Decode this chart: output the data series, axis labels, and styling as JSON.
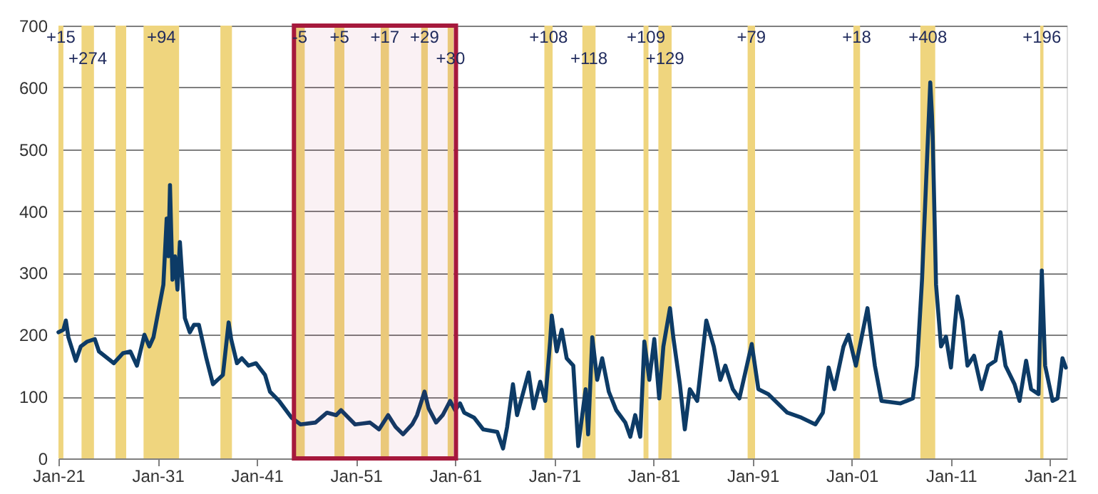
{
  "chart_data": {
    "type": "line",
    "x": [
      "1921-01",
      "1921-07",
      "1921-10",
      "1922-01",
      "1922-10",
      "1923-04",
      "1923-12",
      "1924-09",
      "1925-02",
      "1926-08",
      "1927-07",
      "1928-04",
      "1928-12",
      "1929-09",
      "1930-03",
      "1930-08",
      "1931-02",
      "1931-08",
      "1931-12",
      "1932-02",
      "1932-04",
      "1932-07",
      "1932-10",
      "1933-01",
      "1933-04",
      "1933-10",
      "1934-04",
      "1934-09",
      "1935-03",
      "1935-12",
      "1936-08",
      "1937-08",
      "1938-03",
      "1938-06",
      "1939-01",
      "1939-07",
      "1940-03",
      "1940-12",
      "1941-11",
      "1942-05",
      "1943-04",
      "1944-07",
      "1945-06",
      "1946-12",
      "1948-02",
      "1949-01",
      "1949-07",
      "1950-12",
      "1952-06",
      "1953-05",
      "1954-04",
      "1955-01",
      "1955-10",
      "1956-09",
      "1957-03",
      "1957-12",
      "1958-05",
      "1959-02",
      "1959-10",
      "1960-07",
      "1961-01",
      "1961-07",
      "1961-12",
      "1962-12",
      "1963-11",
      "1965-04",
      "1965-11",
      "1966-04",
      "1966-11",
      "1967-04",
      "1968-06",
      "1968-12",
      "1969-08",
      "1970-02",
      "1970-08",
      "1970-10",
      "1971-04",
      "1971-10",
      "1972-04",
      "1972-12",
      "1973-06",
      "1974-03",
      "1974-06",
      "1974-11",
      "1975-05",
      "1975-11",
      "1976-07",
      "1977-04",
      "1978-03",
      "1978-09",
      "1979-03",
      "1979-09",
      "1980-02",
      "1980-08",
      "1981-02",
      "1981-08",
      "1982-01",
      "1982-09",
      "1983-01",
      "1983-09",
      "1984-03",
      "1984-09",
      "1985-06",
      "1986-05",
      "1987-02",
      "1987-10",
      "1988-04",
      "1989-01",
      "1989-09",
      "1990-12",
      "1991-08",
      "1992-08",
      "1994-07",
      "1995-12",
      "1997-05",
      "1998-02",
      "1998-09",
      "1999-04",
      "2000-03",
      "2000-09",
      "2001-06",
      "2002-08",
      "2003-05",
      "2004-01",
      "2005-12",
      "2007-03",
      "2007-08",
      "2008-02",
      "2008-08",
      "2008-12",
      "2009-02",
      "2009-03",
      "2009-07",
      "2010-01",
      "2010-07",
      "2011-01",
      "2011-06",
      "2011-09",
      "2012-03",
      "2012-09",
      "2013-05",
      "2014-02",
      "2014-10",
      "2015-07",
      "2016-01",
      "2016-07",
      "2017-06",
      "2017-12",
      "2018-08",
      "2019-02",
      "2019-11",
      "2020-03",
      "2020-07",
      "2021-04",
      "2021-10",
      "2022-04",
      "2022-08"
    ],
    "series": [
      {
        "color": "#0d3b66",
        "values": [
          204,
          208,
          223,
          196,
          158,
          181,
          189,
          193,
          173,
          154,
          170,
          173,
          150,
          200,
          181,
          196,
          239,
          281,
          388,
          327,
          442,
          289,
          327,
          273,
          350,
          227,
          204,
          216,
          216,
          162,
          120,
          135,
          220,
          193,
          154,
          162,
          150,
          154,
          135,
          108,
          93,
          66,
          55,
          58,
          74,
          70,
          78,
          55,
          58,
          47,
          70,
          51,
          39,
          55,
          70,
          108,
          81,
          58,
          70,
          93,
          78,
          89,
          74,
          66,
          47,
          43,
          16,
          51,
          120,
          70,
          139,
          81,
          124,
          93,
          189,
          231,
          173,
          208,
          162,
          150,
          20,
          112,
          39,
          196,
          127,
          162,
          108,
          78,
          58,
          35,
          70,
          35,
          189,
          127,
          193,
          97,
          181,
          243,
          196,
          120,
          47,
          112,
          93,
          223,
          181,
          127,
          150,
          112,
          97,
          185,
          112,
          104,
          74,
          66,
          55,
          74,
          147,
          112,
          181,
          200,
          150,
          243,
          150,
          93,
          89,
          97,
          150,
          289,
          481,
          608,
          555,
          520,
          281,
          181,
          197,
          147,
          220,
          262,
          223,
          150,
          166,
          112,
          150,
          158,
          204,
          150,
          120,
          93,
          158,
          112,
          104,
          304,
          150,
          93,
          97,
          162,
          147
        ]
      }
    ],
    "xlim": [
      "1921-01",
      "2022-09"
    ],
    "xticks": [
      {
        "value": "1921-01",
        "label": "Jan-21"
      },
      {
        "value": "1931-01",
        "label": "Jan-31"
      },
      {
        "value": "1941-01",
        "label": "Jan-41"
      },
      {
        "value": "1951-01",
        "label": "Jan-51"
      },
      {
        "value": "1961-01",
        "label": "Jan-61"
      },
      {
        "value": "1971-01",
        "label": "Jan-71"
      },
      {
        "value": "1981-01",
        "label": "Jan-81"
      },
      {
        "value": "1991-01",
        "label": "Jan-91"
      },
      {
        "value": "2001-01",
        "label": "Jan-01"
      },
      {
        "value": "2011-01",
        "label": "Jan-11"
      },
      {
        "value": "2021-01",
        "label": "Jan-21"
      }
    ],
    "ylim": [
      0,
      700
    ],
    "yticks": [
      0,
      100,
      200,
      300,
      400,
      500,
      600,
      700
    ],
    "grid": "y",
    "line_style": "solid",
    "bands": [
      {
        "axis": "x",
        "from": "1921-01",
        "to": "1921-07",
        "color": "#efd57e",
        "label": "+15"
      },
      {
        "axis": "x",
        "from": "1923-05",
        "to": "1924-08",
        "color": "#efd57e",
        "label": "+274"
      },
      {
        "axis": "x",
        "from": "1926-10",
        "to": "1927-11",
        "color": "#efd57e"
      },
      {
        "axis": "x",
        "from": "1929-08",
        "to": "1933-03",
        "color": "#efd57e",
        "label": "+94"
      },
      {
        "axis": "x",
        "from": "1937-05",
        "to": "1938-07",
        "color": "#efd57e"
      },
      {
        "axis": "x",
        "from": "1944-11",
        "to": "1945-11",
        "color": "#efd57e",
        "label": "-5"
      },
      {
        "axis": "x",
        "from": "1948-11",
        "to": "1949-11",
        "color": "#efd57e",
        "label": "+5"
      },
      {
        "axis": "x",
        "from": "1953-07",
        "to": "1954-05",
        "color": "#efd57e",
        "label": "+17"
      },
      {
        "axis": "x",
        "from": "1957-08",
        "to": "1958-04",
        "color": "#efd57e",
        "label": "+29"
      },
      {
        "axis": "x",
        "from": "1960-04",
        "to": "1960-11",
        "color": "#efd57e",
        "label": "+30"
      },
      {
        "axis": "x",
        "from": "1970-01",
        "to": "1970-11",
        "color": "#efd57e",
        "label": "+108"
      },
      {
        "axis": "x",
        "from": "1973-11",
        "to": "1975-03",
        "color": "#efd57e",
        "label": "+118"
      },
      {
        "axis": "x",
        "from": "1980-01",
        "to": "1980-07",
        "color": "#efd57e",
        "label": "+109"
      },
      {
        "axis": "x",
        "from": "1981-07",
        "to": "1982-11",
        "color": "#efd57e",
        "label": "+129"
      },
      {
        "axis": "x",
        "from": "1990-07",
        "to": "1991-04",
        "color": "#efd57e",
        "label": "+79"
      },
      {
        "axis": "x",
        "from": "2001-03",
        "to": "2001-11",
        "color": "#efd57e",
        "label": "+18"
      },
      {
        "axis": "x",
        "from": "2007-12",
        "to": "2009-06",
        "color": "#efd57e",
        "label": "+408"
      },
      {
        "axis": "x",
        "from": "2020-01",
        "to": "2020-05",
        "color": "#efd57e",
        "label": "+196"
      },
      {
        "axis": "x",
        "from": "1944-10",
        "to": "1961-02",
        "color": "#a6193c"
      }
    ]
  }
}
